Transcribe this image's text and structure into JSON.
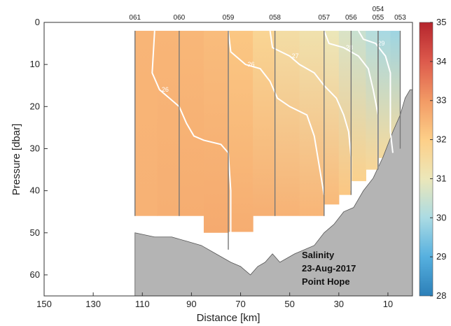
{
  "chart_data": {
    "type": "heatmap",
    "title": "",
    "xlabel": "Distance [km]",
    "ylabel": "Pressure [dbar]",
    "xlim": [
      150,
      0
    ],
    "ylim": [
      65,
      0
    ],
    "x_reversed": true,
    "y_reversed": true,
    "xticks": [
      150,
      130,
      110,
      90,
      70,
      50,
      30,
      10
    ],
    "yticks": [
      0,
      10,
      20,
      30,
      40,
      50,
      60
    ],
    "grid": false,
    "stations": [
      {
        "name": "061",
        "x": 113,
        "max_pressure": 46
      },
      {
        "name": "060",
        "x": 95,
        "max_pressure": 46
      },
      {
        "name": "059",
        "x": 75,
        "max_pressure": 54
      },
      {
        "name": "058",
        "x": 56,
        "max_pressure": 46
      },
      {
        "name": "057",
        "x": 36,
        "max_pressure": 46
      },
      {
        "name": "056",
        "x": 25,
        "max_pressure": 41
      },
      {
        "name": "055",
        "x": 14,
        "max_pressure": 35
      },
      {
        "name": "054",
        "x": 14,
        "max_pressure": 35
      },
      {
        "name": "053",
        "x": 5,
        "max_pressure": 30
      }
    ],
    "field_column_x": [
      113,
      104,
      95,
      85,
      75,
      65,
      56,
      46,
      36,
      30,
      25,
      19,
      14,
      9,
      5
    ],
    "field_salinity_surface": [
      32.5,
      32.5,
      32.5,
      32.4,
      32.3,
      32.0,
      31.5,
      31.3,
      31.2,
      30.8,
      30.6,
      30.3,
      30.0,
      29.9,
      29.8
    ],
    "field_salinity_bottom": [
      32.5,
      32.6,
      32.6,
      32.7,
      32.7,
      32.6,
      32.6,
      32.5,
      32.5,
      32.3,
      32.0,
      31.8,
      31.6,
      31.5,
      31.5
    ],
    "bathymetry": [
      [
        113,
        50
      ],
      [
        105,
        51
      ],
      [
        98,
        51
      ],
      [
        92,
        52
      ],
      [
        86,
        53
      ],
      [
        80,
        55
      ],
      [
        74,
        57
      ],
      [
        70,
        58
      ],
      [
        66,
        60
      ],
      [
        63,
        58
      ],
      [
        60,
        57
      ],
      [
        57,
        55
      ],
      [
        54,
        57
      ],
      [
        51,
        56
      ],
      [
        48,
        55
      ],
      [
        44,
        54
      ],
      [
        40,
        53
      ],
      [
        36,
        50
      ],
      [
        32,
        48
      ],
      [
        28,
        45
      ],
      [
        24,
        44
      ],
      [
        20,
        40
      ],
      [
        16,
        37
      ],
      [
        12,
        32
      ],
      [
        8,
        26
      ],
      [
        5,
        22
      ],
      [
        3,
        18
      ],
      [
        1,
        16
      ]
    ],
    "contours": [
      {
        "label": "26",
        "points": [
          [
            105,
            2
          ],
          [
            106,
            12
          ],
          [
            103,
            16
          ],
          [
            99,
            18
          ],
          [
            95,
            20
          ],
          [
            92,
            24
          ],
          [
            89,
            27
          ],
          [
            85,
            28
          ],
          [
            78,
            29
          ],
          [
            75,
            31
          ],
          [
            74,
            40
          ],
          [
            74,
            53
          ]
        ]
      },
      {
        "label": "26",
        "points": [
          [
            75,
            2
          ],
          [
            74,
            7
          ],
          [
            68,
            10
          ],
          [
            62,
            11
          ],
          [
            58,
            14
          ],
          [
            55,
            18
          ],
          [
            50,
            20
          ],
          [
            43,
            22
          ],
          [
            40,
            27
          ],
          [
            38,
            34
          ],
          [
            36,
            41
          ]
        ]
      },
      {
        "label": "27",
        "points": [
          [
            58,
            2
          ],
          [
            57,
            6
          ],
          [
            50,
            8
          ],
          [
            46,
            10
          ],
          [
            40,
            12
          ],
          [
            36,
            15
          ],
          [
            31,
            18
          ],
          [
            28,
            22
          ],
          [
            26,
            26
          ],
          [
            25,
            32
          ],
          [
            25,
            40
          ]
        ]
      },
      {
        "label": "28",
        "points": [
          [
            36,
            2
          ],
          [
            34,
            5
          ],
          [
            28,
            6
          ],
          [
            22,
            8
          ],
          [
            18,
            11
          ],
          [
            16,
            16
          ],
          [
            14,
            22
          ],
          [
            14,
            30
          ],
          [
            14,
            35
          ]
        ]
      },
      {
        "label": "29",
        "points": [
          [
            22,
            2
          ],
          [
            20,
            4
          ],
          [
            15,
            5
          ],
          [
            11,
            8
          ],
          [
            9,
            12
          ],
          [
            9,
            18
          ],
          [
            9,
            26
          ],
          [
            8,
            31
          ]
        ]
      }
    ],
    "colorbar": {
      "min": 28,
      "max": 35,
      "ticks": [
        28,
        29,
        30,
        31,
        32,
        33,
        34,
        35
      ],
      "colors": [
        "#2c7fb8",
        "#56b0df",
        "#abdbe3",
        "#ece7b9",
        "#fdcf88",
        "#f29a65",
        "#dd5a4c",
        "#b5252d"
      ]
    },
    "annotation": [
      "Salinity",
      "23-Aug-2017",
      "Point Hope"
    ]
  }
}
